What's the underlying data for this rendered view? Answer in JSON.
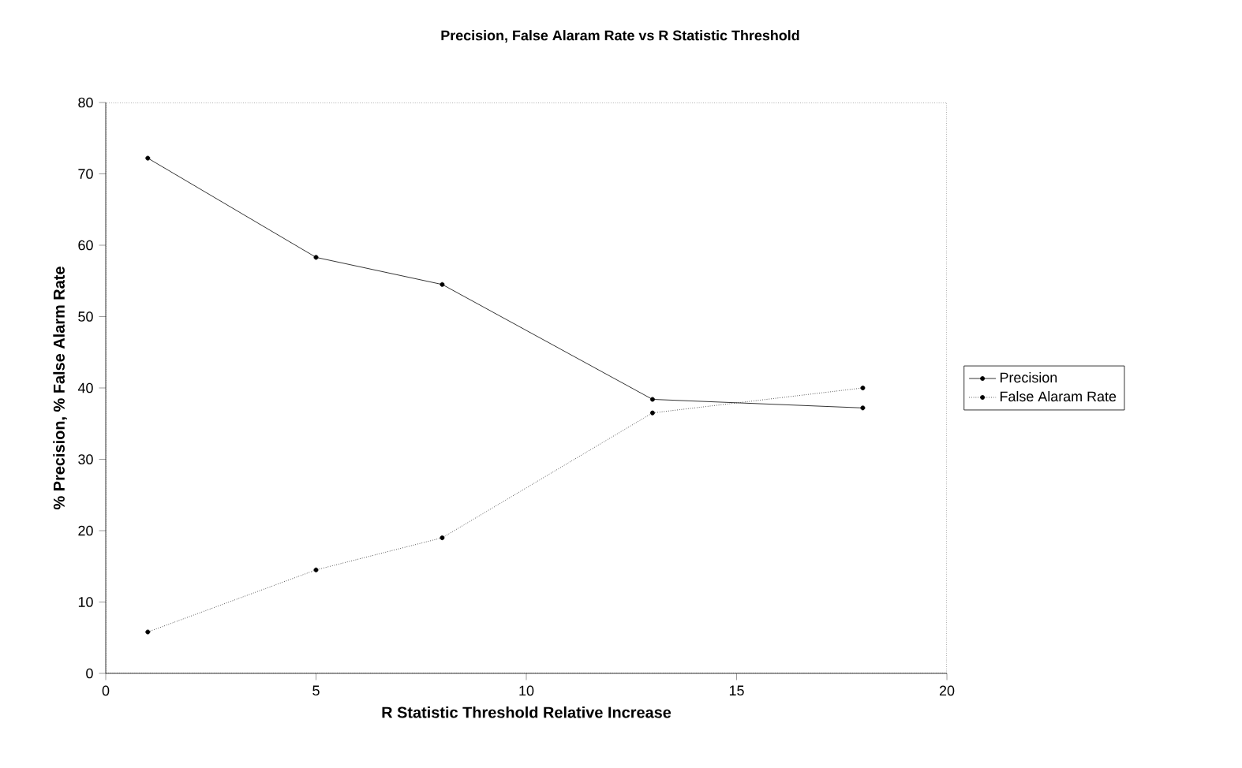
{
  "chart_data": {
    "type": "line",
    "title": "Precision, False Alaram Rate vs R Statistic Threshold",
    "xlabel": "R Statistic Threshold Relative Increase",
    "ylabel": "% Precision, % False Alarm Rate",
    "x": [
      1,
      5,
      8,
      13,
      18
    ],
    "series": [
      {
        "name": "Precision",
        "color": "#000000",
        "line_style": "solid",
        "values": [
          72.2,
          58.3,
          54.5,
          38.4,
          37.2
        ]
      },
      {
        "name": "False Alaram Rate",
        "color": "#000000",
        "line_style": "dotted",
        "values": [
          5.8,
          14.5,
          19.0,
          36.5,
          40.0
        ]
      }
    ],
    "xlim": [
      0,
      20
    ],
    "xticks": [
      0,
      5,
      10,
      15,
      20
    ],
    "ylim": [
      0,
      80
    ],
    "yticks": [
      0,
      10,
      20,
      30,
      40,
      50,
      60,
      70,
      80
    ],
    "legend": "right",
    "marker": "circle"
  }
}
